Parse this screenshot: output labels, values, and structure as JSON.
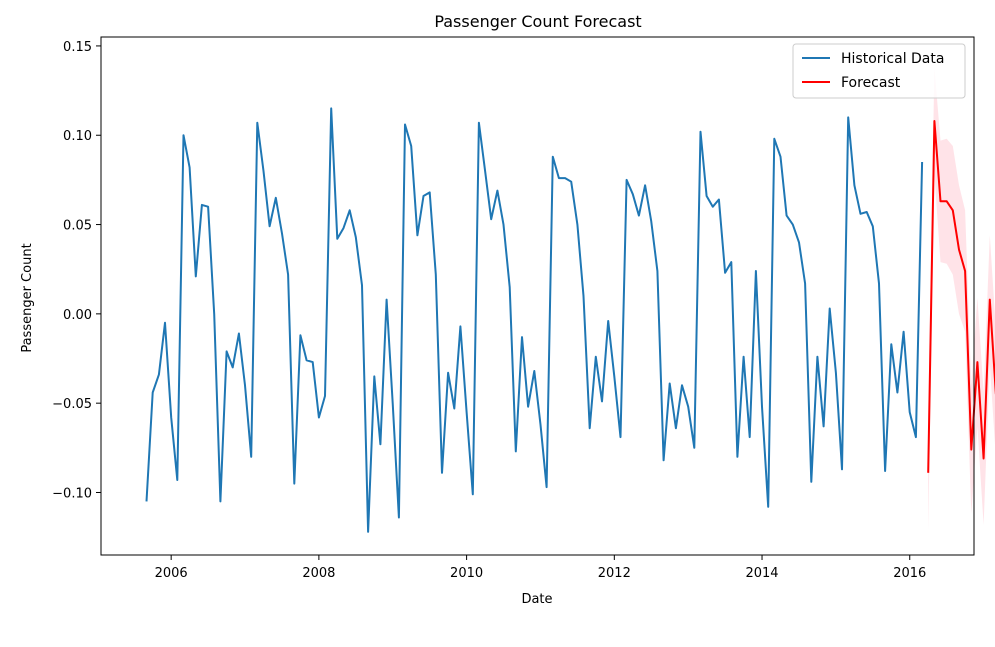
{
  "chart_data": {
    "type": "line",
    "title": "Passenger Count Forecast",
    "xlabel": "Date",
    "ylabel": "Passenger Count",
    "xlim": [
      2005.05,
      2016.87
    ],
    "ylim": [
      -0.135,
      0.155
    ],
    "x_ticks": [
      2006,
      2008,
      2010,
      2012,
      2014,
      2016
    ],
    "x_tick_labels": [
      "2006",
      "2008",
      "2010",
      "2012",
      "2014",
      "2016"
    ],
    "y_ticks": [
      -0.1,
      -0.05,
      0.0,
      0.05,
      0.1,
      0.15
    ],
    "y_tick_labels": [
      "−0.10",
      "−0.05",
      "0.00",
      "0.05",
      "0.10",
      "0.15"
    ],
    "grid": false,
    "legend_position": "top-right",
    "colors": {
      "historical": "#1f77b4",
      "forecast": "#ff0000",
      "interval": "#ffc0cb"
    },
    "series": [
      {
        "name": "Historical Data",
        "start": "2005-09",
        "values": [
          -0.105,
          -0.044,
          -0.034,
          -0.005,
          -0.058,
          -0.093,
          0.1,
          0.082,
          0.021,
          0.061,
          0.06,
          0.0,
          -0.105,
          -0.021,
          -0.03,
          -0.011,
          -0.04,
          -0.08,
          0.107,
          0.08,
          0.049,
          0.065,
          0.045,
          0.022,
          -0.095,
          -0.012,
          -0.026,
          -0.027,
          -0.058,
          -0.046,
          0.115,
          0.042,
          0.048,
          0.058,
          0.043,
          0.016,
          -0.122,
          -0.035,
          -0.073,
          0.008,
          -0.05,
          -0.114,
          0.106,
          0.094,
          0.044,
          0.066,
          0.068,
          0.022,
          -0.089,
          -0.033,
          -0.053,
          -0.007,
          -0.055,
          -0.101,
          0.107,
          0.08,
          0.053,
          0.069,
          0.05,
          0.015,
          -0.077,
          -0.013,
          -0.052,
          -0.032,
          -0.062,
          -0.097,
          0.088,
          0.076,
          0.076,
          0.074,
          0.05,
          0.01,
          -0.064,
          -0.024,
          -0.049,
          -0.004,
          -0.035,
          -0.069,
          0.075,
          0.067,
          0.055,
          0.072,
          0.052,
          0.024,
          -0.082,
          -0.039,
          -0.064,
          -0.04,
          -0.052,
          -0.075,
          0.102,
          0.066,
          0.06,
          0.064,
          0.023,
          0.029,
          -0.08,
          -0.024,
          -0.069,
          0.024,
          -0.052,
          -0.108,
          0.098,
          0.088,
          0.055,
          0.05,
          0.04,
          0.017,
          -0.094,
          -0.024,
          -0.063,
          0.003,
          -0.033,
          -0.087,
          0.11,
          0.072,
          0.056,
          0.057,
          0.049,
          0.017,
          -0.088,
          -0.017,
          -0.044,
          -0.01,
          -0.055,
          -0.069,
          0.085
        ]
      },
      {
        "name": "Forecast",
        "start": "2016-04",
        "values": [
          -0.089,
          0.108,
          0.063,
          0.063,
          0.058,
          0.036,
          0.024,
          -0.076,
          -0.027,
          -0.081,
          0.008,
          -0.045
        ],
        "lower": [
          -0.121,
          0.078,
          0.029,
          0.028,
          0.022,
          0.0,
          -0.01,
          -0.112,
          -0.063,
          -0.118,
          -0.028,
          -0.081
        ],
        "upper": [
          -0.057,
          0.138,
          0.097,
          0.098,
          0.094,
          0.072,
          0.058,
          -0.04,
          0.009,
          -0.044,
          0.044,
          -0.009
        ]
      }
    ]
  }
}
